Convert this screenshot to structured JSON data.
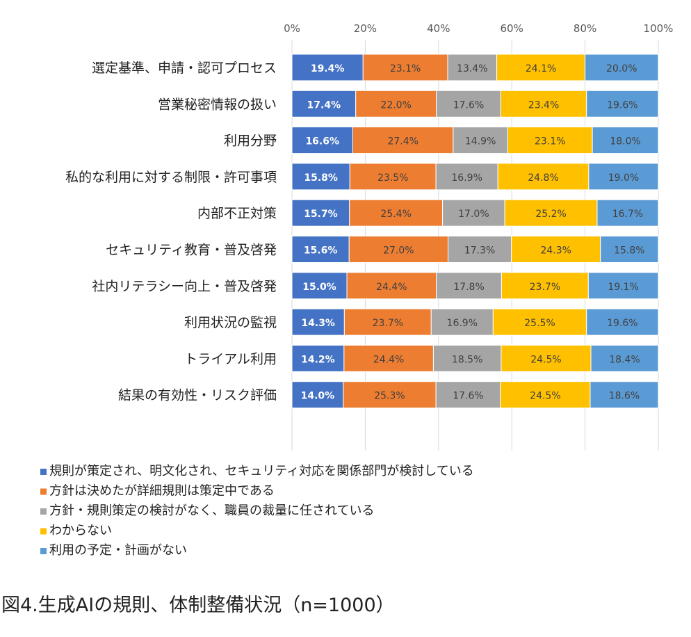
{
  "caption": "図4.生成AIの規則、体制整備状況（n=1000）",
  "chart_data": {
    "type": "bar",
    "orientation": "horizontal",
    "stacked": "percent",
    "xlim": [
      0,
      100
    ],
    "x_ticks": [
      "0%",
      "20%",
      "40%",
      "60%",
      "80%",
      "100%"
    ],
    "x_tick_position": "top",
    "grid": true,
    "legend_position": "bottom-left",
    "categories": [
      "選定基準、申請・認可プロセス",
      "営業秘密情報の扱い",
      "利用分野",
      "私的な利用に対する制限・許可事項",
      "内部不正対策",
      "セキュリティ教育・普及啓発",
      "社内リテラシー向上・普及啓発",
      "利用状況の監視",
      "トライアル利用",
      "結果の有効性・リスク評価"
    ],
    "series": [
      {
        "name": "規則が策定され、明文化され、セキュリティ対応を関係部門が検討している",
        "color": "#4472C4",
        "label_color": "#ffffff",
        "label_bold": true,
        "values": [
          19.4,
          17.4,
          16.6,
          15.8,
          15.7,
          15.6,
          15.0,
          14.3,
          14.2,
          14.0
        ],
        "labels": [
          "19.4%",
          "17.4%",
          "16.6%",
          "15.8%",
          "15.7%",
          "15.6%",
          "15.0%",
          "14.3%",
          "14.2%",
          "14.0%"
        ]
      },
      {
        "name": "方針は決めたが詳細規則は策定中である",
        "color": "#ED7D31",
        "label_color": "#404040",
        "label_bold": false,
        "values": [
          23.1,
          22.0,
          27.4,
          23.5,
          25.4,
          27.0,
          24.4,
          23.7,
          24.4,
          25.3
        ],
        "labels": [
          "23.1%",
          "22.0%",
          "27.4%",
          "23.5%",
          "25.4%",
          "27.0%",
          "24.4%",
          "23.7%",
          "24.4%",
          "25.3%"
        ]
      },
      {
        "name": "方針・規則策定の検討がなく、職員の裁量に任されている",
        "color": "#A5A5A5",
        "label_color": "#404040",
        "label_bold": false,
        "values": [
          13.4,
          17.6,
          14.9,
          16.9,
          17.0,
          17.3,
          17.8,
          16.9,
          18.5,
          17.6
        ],
        "labels": [
          "13.4%",
          "17.6%",
          "14.9%",
          "16.9%",
          "17.0%",
          "17.3%",
          "17.8%",
          "16.9%",
          "18.5%",
          "17.6%"
        ]
      },
      {
        "name": "わからない",
        "color": "#FFC000",
        "label_color": "#404040",
        "label_bold": false,
        "values": [
          24.1,
          23.4,
          23.1,
          24.8,
          25.2,
          24.3,
          23.7,
          25.5,
          24.5,
          24.5
        ],
        "labels": [
          "24.1%",
          "23.4%",
          "23.1%",
          "24.8%",
          "25.2%",
          "24.3%",
          "23.7%",
          "25.5%",
          "24.5%",
          "24.5%"
        ]
      },
      {
        "name": "利用の予定・計画がない",
        "color": "#5B9BD5",
        "label_color": "#404040",
        "label_bold": false,
        "values": [
          20.0,
          19.6,
          18.0,
          19.0,
          16.7,
          15.8,
          19.1,
          19.6,
          18.4,
          18.6
        ],
        "labels": [
          "20.0%",
          "19.6%",
          "18.0%",
          "19.0%",
          "16.7%",
          "15.8%",
          "19.1%",
          "19.6%",
          "18.4%",
          "18.6%"
        ]
      }
    ]
  }
}
